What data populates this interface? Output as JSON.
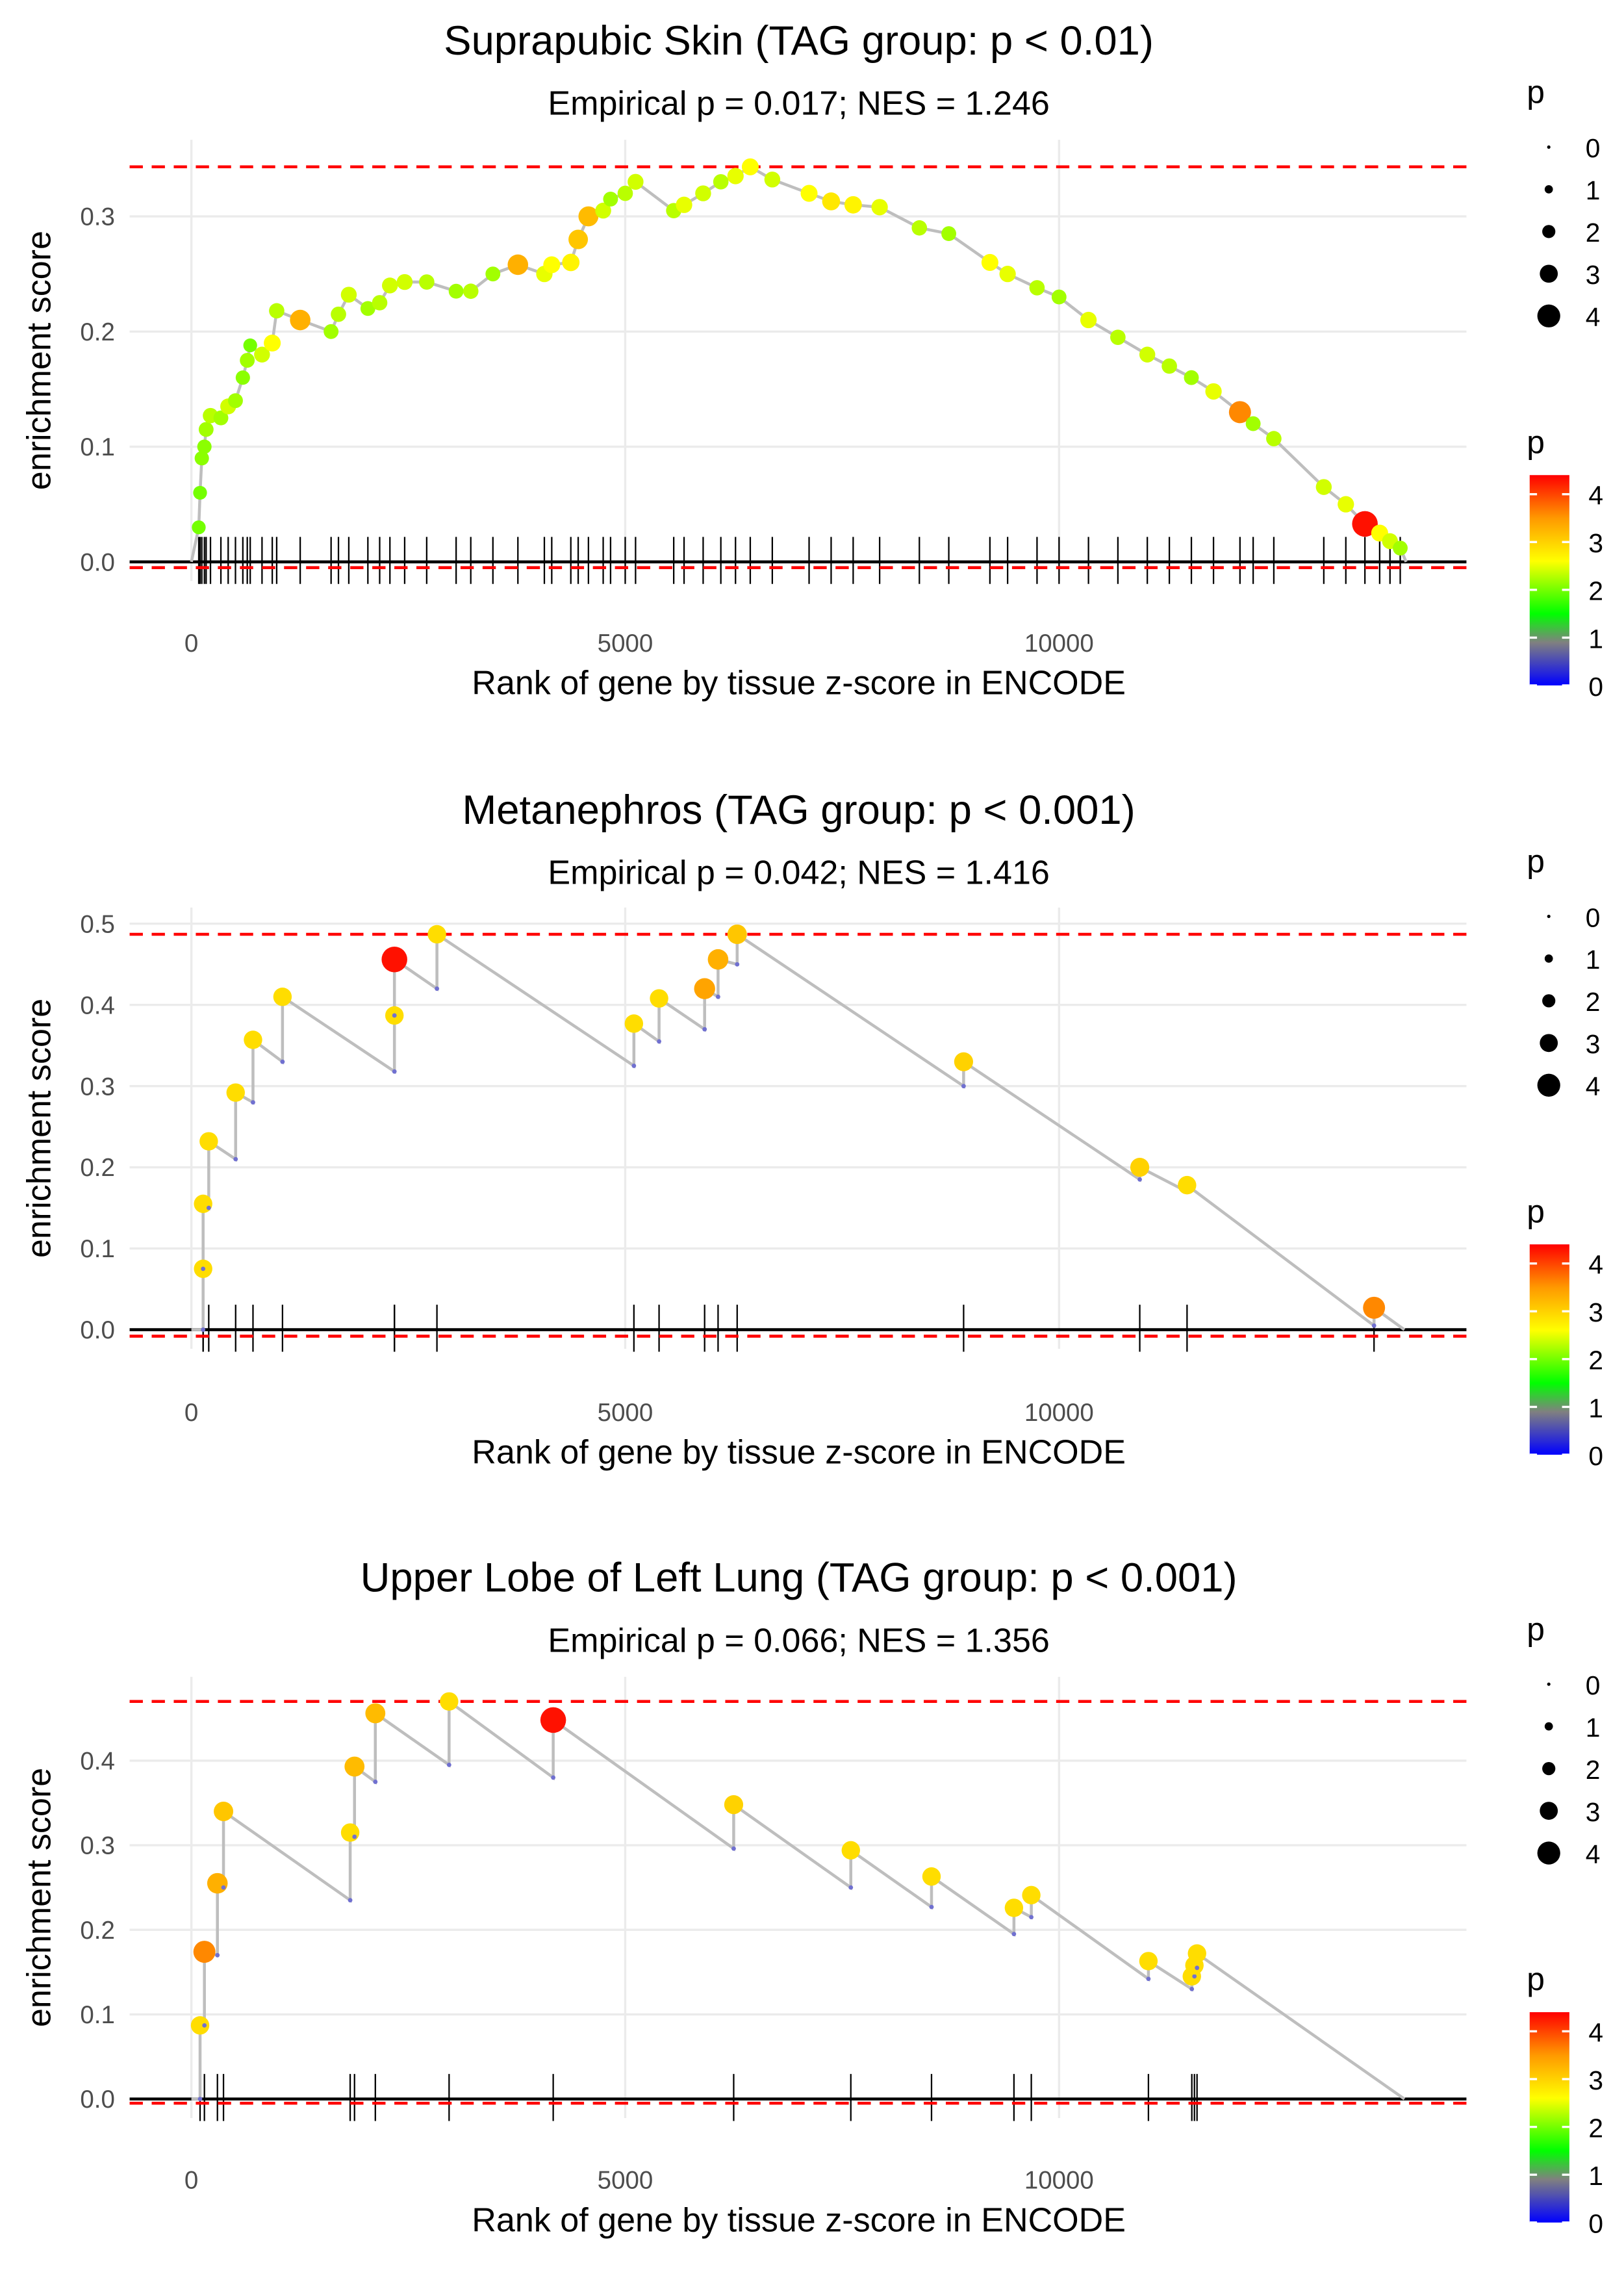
{
  "chart_data": [
    {
      "type": "scatter",
      "title": "Suprapubic Skin (TAG group: p < 0.01)",
      "subtitle": "Empirical p = 0.017; NES = 1.246",
      "xlabel": "Rank of gene by tissue z-score in ENCODE",
      "ylabel": "enrichment score",
      "xlim": [
        -700,
        14700
      ],
      "ylim": [
        -0.017,
        0.366
      ],
      "x_ticks": [
        "0",
        "5000",
        "10000"
      ],
      "x_tick_values": [
        0,
        5000,
        10000
      ],
      "y_ticks": [
        "0.0",
        "0.1",
        "0.2",
        "0.3"
      ],
      "y_tick_values": [
        0,
        0.1,
        0.2,
        0.3
      ],
      "max_es": 0.343,
      "min_es": -0.005,
      "end_rank": 14000,
      "hits": [
        [
          85,
          0.03,
          2
        ],
        [
          100,
          0.06,
          2
        ],
        [
          120,
          0.09,
          2.1
        ],
        [
          150,
          0.1,
          2.1
        ],
        [
          170,
          0.115,
          2.2
        ],
        [
          220,
          0.127,
          2.3
        ],
        [
          340,
          0.125,
          2.2
        ],
        [
          424,
          0.135,
          2.4
        ],
        [
          508,
          0.14,
          2.2
        ],
        [
          593,
          0.16,
          2.1
        ],
        [
          644,
          0.175,
          2.2
        ],
        [
          678,
          0.188,
          2
        ],
        [
          814,
          0.18,
          2.4
        ],
        [
          932,
          0.19,
          2.6
        ],
        [
          983,
          0.218,
          2.3
        ],
        [
          1254,
          0.21,
          3.3
        ],
        [
          1610,
          0.2,
          2.2
        ],
        [
          1695,
          0.215,
          2.3
        ],
        [
          1814,
          0.232,
          2.4
        ],
        [
          2034,
          0.22,
          2.2
        ],
        [
          2170,
          0.225,
          2.3
        ],
        [
          2288,
          0.24,
          2.4
        ],
        [
          2458,
          0.243,
          2.4
        ],
        [
          2712,
          0.243,
          2.3
        ],
        [
          3051,
          0.235,
          2.2
        ],
        [
          3220,
          0.235,
          2.3
        ],
        [
          3475,
          0.25,
          2.2
        ],
        [
          3763,
          0.258,
          3.3
        ],
        [
          4068,
          0.25,
          2.5
        ],
        [
          4153,
          0.258,
          2.6
        ],
        [
          4373,
          0.26,
          2.7
        ],
        [
          4458,
          0.28,
          3.1
        ],
        [
          4576,
          0.3,
          3.2
        ],
        [
          4746,
          0.305,
          2.4
        ],
        [
          4831,
          0.315,
          2.2
        ],
        [
          5000,
          0.32,
          2.3
        ],
        [
          5119,
          0.33,
          2.4
        ],
        [
          5559,
          0.305,
          2.3
        ],
        [
          5678,
          0.31,
          2.5
        ],
        [
          5898,
          0.32,
          2.4
        ],
        [
          6102,
          0.33,
          2.3
        ],
        [
          6271,
          0.335,
          2.5
        ],
        [
          6441,
          0.343,
          2.6
        ],
        [
          6695,
          0.332,
          2.4
        ],
        [
          7119,
          0.32,
          2.6
        ],
        [
          7373,
          0.313,
          2.8
        ],
        [
          7627,
          0.31,
          2.7
        ],
        [
          7932,
          0.308,
          2.5
        ],
        [
          8390,
          0.29,
          2.3
        ],
        [
          8729,
          0.285,
          2.2
        ],
        [
          9203,
          0.26,
          2.6
        ],
        [
          9407,
          0.25,
          2.5
        ],
        [
          9746,
          0.238,
          2.3
        ],
        [
          10000,
          0.23,
          2.2
        ],
        [
          10339,
          0.21,
          2.5
        ],
        [
          10678,
          0.195,
          2.3
        ],
        [
          11017,
          0.18,
          2.4
        ],
        [
          11271,
          0.17,
          2.3
        ],
        [
          11525,
          0.16,
          2.2
        ],
        [
          11780,
          0.148,
          2.5
        ],
        [
          12085,
          0.13,
          3.6
        ],
        [
          12237,
          0.12,
          2.2
        ],
        [
          12475,
          0.107,
          2.3
        ],
        [
          13051,
          0.065,
          2.4
        ],
        [
          13305,
          0.05,
          2.5
        ],
        [
          13525,
          0.033,
          4.3
        ],
        [
          13695,
          0.025,
          2.6
        ],
        [
          13814,
          0.018,
          2.4
        ],
        [
          13932,
          0.012,
          2.2
        ]
      ]
    },
    {
      "type": "scatter",
      "title": "Metanephros (TAG group: p < 0.001)",
      "subtitle": "Empirical p = 0.042; NES = 1.416",
      "xlabel": "Rank of gene by tissue z-score in ENCODE",
      "ylabel": "enrichment score",
      "xlim": [
        -700,
        14700
      ],
      "ylim": [
        -0.024,
        0.52
      ],
      "x_ticks": [
        "0",
        "5000",
        "10000"
      ],
      "x_tick_values": [
        0,
        5000,
        10000
      ],
      "y_ticks": [
        "0.0",
        "0.1",
        "0.2",
        "0.3",
        "0.4",
        "0.5"
      ],
      "y_tick_values": [
        0,
        0.1,
        0.2,
        0.3,
        0.4,
        0.5
      ],
      "max_es": 0.487,
      "min_es": -0.008,
      "end_rank": 13980,
      "hits": [
        [
          135,
          0.0,
          0.075,
          2.9
        ],
        [
          135,
          0.075,
          0.155,
          2.9
        ],
        [
          200,
          0.15,
          0.232,
          2.9
        ],
        [
          510,
          0.21,
          0.292,
          2.9
        ],
        [
          710,
          0.28,
          0.357,
          2.9
        ],
        [
          1050,
          0.33,
          0.41,
          2.9
        ],
        [
          2340,
          0.318,
          0.387,
          2.9
        ],
        [
          2340,
          0.387,
          0.456,
          4.3
        ],
        [
          2830,
          0.42,
          0.487,
          2.9
        ],
        [
          5100,
          0.325,
          0.377,
          2.9
        ],
        [
          5390,
          0.355,
          0.408,
          2.9
        ],
        [
          5915,
          0.37,
          0.42,
          3.4
        ],
        [
          6070,
          0.41,
          0.456,
          3.3
        ],
        [
          6290,
          0.45,
          0.487,
          3.1
        ],
        [
          8900,
          0.3,
          0.33,
          3.0
        ],
        [
          10930,
          0.185,
          0.2,
          3.0
        ],
        [
          11475,
          0.17,
          0.178,
          2.9
        ],
        [
          13630,
          0.005,
          0.027,
          3.6
        ]
      ]
    },
    {
      "type": "scatter",
      "title": "Upper Lobe of Left Lung (TAG group: p < 0.001)",
      "subtitle": "Empirical p = 0.066; NES = 1.356",
      "xlabel": "Rank of gene by tissue z-score in ENCODE",
      "ylabel": "enrichment score",
      "xlim": [
        -700,
        14700
      ],
      "ylim": [
        -0.022,
        0.5
      ],
      "x_ticks": [
        "0",
        "5000",
        "10000"
      ],
      "x_tick_values": [
        0,
        5000,
        10000
      ],
      "y_ticks": [
        "0.0",
        "0.1",
        "0.2",
        "0.3",
        "0.4"
      ],
      "y_tick_values": [
        0,
        0.1,
        0.2,
        0.3,
        0.4
      ],
      "max_es": 0.47,
      "min_es": -0.005,
      "end_rank": 13980,
      "hits": [
        [
          100,
          0.0,
          0.087,
          2.9
        ],
        [
          150,
          0.087,
          0.174,
          3.6
        ],
        [
          300,
          0.17,
          0.255,
          3.3
        ],
        [
          370,
          0.25,
          0.34,
          3.1
        ],
        [
          1830,
          0.235,
          0.315,
          2.9
        ],
        [
          1880,
          0.31,
          0.393,
          3.2
        ],
        [
          2120,
          0.375,
          0.456,
          3.2
        ],
        [
          2970,
          0.395,
          0.47,
          2.9
        ],
        [
          4170,
          0.38,
          0.448,
          4.3
        ],
        [
          6250,
          0.296,
          0.348,
          3.0
        ],
        [
          7600,
          0.25,
          0.294,
          2.9
        ],
        [
          8530,
          0.227,
          0.263,
          2.9
        ],
        [
          9480,
          0.195,
          0.226,
          2.9
        ],
        [
          9680,
          0.215,
          0.241,
          2.9
        ],
        [
          11030,
          0.142,
          0.163,
          2.9
        ],
        [
          11530,
          0.13,
          0.145,
          2.9
        ],
        [
          11560,
          0.145,
          0.158,
          2.9
        ],
        [
          11590,
          0.155,
          0.172,
          2.9
        ]
      ]
    }
  ],
  "legend": {
    "size_title": "p",
    "size_labels": [
      "0",
      "1",
      "2",
      "3",
      "4"
    ],
    "size_values": [
      0,
      1,
      2,
      3,
      4
    ],
    "color_title": "p",
    "color_labels": [
      "4",
      "3",
      "2",
      "1",
      "0"
    ],
    "color_values": [
      4,
      3,
      2,
      1,
      0
    ],
    "color_max": 4.4,
    "color_stops": [
      {
        "p": 0,
        "color": "#0000ff"
      },
      {
        "p": 0.9,
        "color": "#808080"
      },
      {
        "p": 1.5,
        "color": "#00ff00"
      },
      {
        "p": 2.6,
        "color": "#ffff00"
      },
      {
        "p": 3.5,
        "color": "#ff9900"
      },
      {
        "p": 4.4,
        "color": "#ff0000"
      }
    ],
    "line_color": "#bebebe",
    "threshold_color": "#ff0000"
  }
}
